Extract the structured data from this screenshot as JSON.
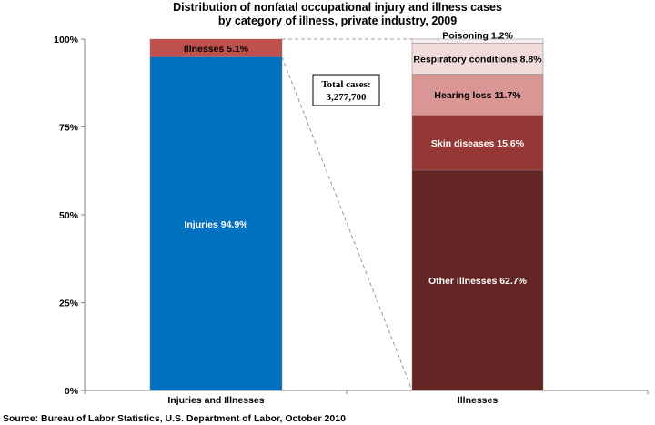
{
  "chart_data": {
    "type": "bar",
    "stacked": true,
    "title": [
      "Distribution of nonfatal occupational injury and illness cases",
      "by category of illness, private industry, 2009"
    ],
    "categories": [
      "Injuries and Illnesses",
      "Illnesses"
    ],
    "y_ticks": [
      "0%",
      "25%",
      "50%",
      "75%",
      "100%"
    ],
    "ylim": [
      0,
      100
    ],
    "bars": [
      {
        "category": "Injuries and Illnesses",
        "segments": [
          {
            "label": "Injuries 94.9%",
            "value": 94.9,
            "color": "#0070c0",
            "text_color": "#ffffff"
          },
          {
            "label": "Illnesses 5.1%",
            "value": 5.1,
            "color": "#c0504d",
            "text_color": "#000000"
          }
        ]
      },
      {
        "category": "Illnesses",
        "segments": [
          {
            "label": "Other illnesses 62.7%",
            "value": 62.7,
            "color": "#632523",
            "text_color": "#ffffff"
          },
          {
            "label": "Skin diseases 15.6%",
            "value": 15.6,
            "color": "#953735",
            "text_color": "#ffffff"
          },
          {
            "label": "Hearing loss 11.7%",
            "value": 11.7,
            "color": "#d99694",
            "text_color": "#000000"
          },
          {
            "label": "Respiratory conditions 8.8%",
            "value": 8.8,
            "color": "#f2dcdb",
            "text_color": "#000000"
          },
          {
            "label": "Poisoning 1.2%",
            "value": 1.2,
            "color": "#fbeeee",
            "text_color": "#000000"
          }
        ]
      }
    ],
    "annotation": [
      "Total cases:",
      "3,277,700"
    ],
    "source": "Source:  Bureau of Labor Statistics, U.S. Department of Labor, October 2010"
  }
}
